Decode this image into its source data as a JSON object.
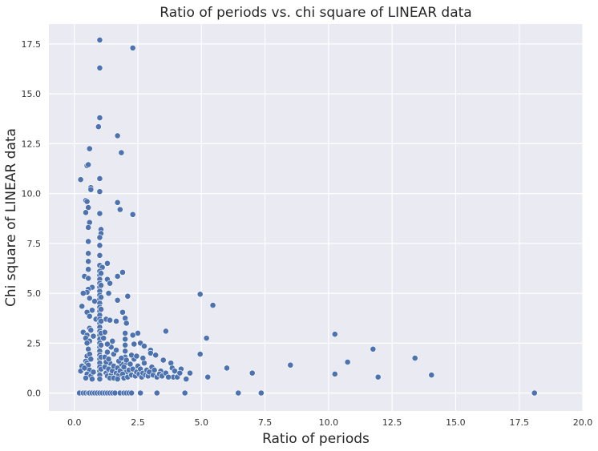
{
  "colors": {
    "background": "#eaeaf2",
    "grid": "#ffffff",
    "marker": "#4c72b0",
    "marker_edge": "#ffffff",
    "text": "#262626"
  },
  "chart_data": {
    "type": "scatter",
    "title": "Ratio of periods vs. chi square of LINEAR data",
    "xlabel": "Ratio of periods",
    "ylabel": "Chi square of LINEAR data",
    "xlim": [
      -1.0,
      20.0
    ],
    "ylim": [
      -0.9,
      18.5
    ],
    "xticks": [
      0.0,
      2.5,
      5.0,
      7.5,
      10.0,
      12.5,
      15.0,
      17.5,
      20.0
    ],
    "xtick_labels": [
      "0.0",
      "2.5",
      "5.0",
      "7.5",
      "10.0",
      "12.5",
      "15.0",
      "17.5",
      "20.0"
    ],
    "yticks": [
      0.0,
      2.5,
      5.0,
      7.5,
      10.0,
      12.5,
      15.0,
      17.5
    ],
    "ytick_labels": [
      "0.0",
      "2.5",
      "5.0",
      "7.5",
      "10.0",
      "12.5",
      "15.0",
      "17.5"
    ],
    "grid": true,
    "legend": "none",
    "points": [
      [
        0.2,
        0.0
      ],
      [
        0.35,
        0.0
      ],
      [
        0.45,
        0.0
      ],
      [
        0.55,
        0.0
      ],
      [
        0.6,
        0.0
      ],
      [
        0.7,
        0.0
      ],
      [
        0.8,
        0.0
      ],
      [
        0.9,
        0.0
      ],
      [
        1.0,
        0.0
      ],
      [
        1.1,
        0.0
      ],
      [
        1.2,
        0.0
      ],
      [
        1.3,
        0.0
      ],
      [
        1.4,
        0.0
      ],
      [
        1.5,
        0.0
      ],
      [
        1.6,
        0.0
      ],
      [
        1.8,
        0.0
      ],
      [
        1.95,
        0.0
      ],
      [
        2.05,
        0.0
      ],
      [
        2.15,
        0.0
      ],
      [
        2.25,
        0.0
      ],
      [
        2.6,
        0.0
      ],
      [
        3.25,
        0.0
      ],
      [
        4.35,
        0.0
      ],
      [
        6.45,
        0.0
      ],
      [
        7.35,
        0.0
      ],
      [
        18.1,
        0.0
      ],
      [
        1.0,
        17.7
      ],
      [
        2.3,
        17.3
      ],
      [
        1.0,
        16.3
      ],
      [
        1.0,
        13.8
      ],
      [
        0.95,
        13.35
      ],
      [
        1.7,
        12.9
      ],
      [
        0.6,
        12.25
      ],
      [
        1.85,
        12.05
      ],
      [
        0.5,
        11.4
      ],
      [
        0.55,
        11.45
      ],
      [
        0.25,
        10.7
      ],
      [
        1.0,
        10.75
      ],
      [
        0.65,
        10.3
      ],
      [
        0.65,
        10.2
      ],
      [
        1.0,
        10.1
      ],
      [
        0.45,
        9.65
      ],
      [
        0.5,
        9.6
      ],
      [
        1.7,
        9.55
      ],
      [
        0.55,
        9.3
      ],
      [
        1.8,
        9.2
      ],
      [
        0.45,
        9.05
      ],
      [
        1.0,
        9.0
      ],
      [
        2.3,
        8.95
      ],
      [
        0.6,
        8.55
      ],
      [
        0.55,
        8.3
      ],
      [
        1.05,
        8.2
      ],
      [
        1.05,
        8.0
      ],
      [
        1.0,
        7.8
      ],
      [
        0.55,
        7.6
      ],
      [
        1.0,
        7.4
      ],
      [
        0.55,
        7.0
      ],
      [
        1.0,
        6.9
      ],
      [
        0.55,
        6.6
      ],
      [
        1.3,
        6.5
      ],
      [
        1.0,
        6.4
      ],
      [
        1.1,
        6.3
      ],
      [
        0.55,
        6.2
      ],
      [
        1.9,
        6.05
      ],
      [
        1.7,
        5.85
      ],
      [
        0.4,
        5.85
      ],
      [
        0.55,
        5.75
      ],
      [
        1.3,
        5.7
      ],
      [
        1.4,
        5.5
      ],
      [
        0.7,
        5.3
      ],
      [
        0.55,
        5.2
      ],
      [
        0.5,
        5.05
      ],
      [
        0.35,
        5.0
      ],
      [
        1.35,
        5.0
      ],
      [
        4.95,
        4.95
      ],
      [
        2.1,
        4.85
      ],
      [
        0.6,
        4.75
      ],
      [
        1.7,
        4.65
      ],
      [
        0.8,
        4.6
      ],
      [
        5.45,
        4.4
      ],
      [
        0.3,
        4.35
      ],
      [
        0.7,
        4.15
      ],
      [
        0.5,
        4.05
      ],
      [
        1.9,
        4.05
      ],
      [
        0.6,
        3.85
      ],
      [
        2.0,
        3.75
      ],
      [
        1.25,
        3.7
      ],
      [
        0.85,
        3.7
      ],
      [
        1.4,
        3.65
      ],
      [
        1.65,
        3.6
      ],
      [
        2.05,
        3.5
      ],
      [
        0.6,
        3.25
      ],
      [
        0.35,
        3.05
      ],
      [
        3.6,
        3.1
      ],
      [
        2.5,
        3.0
      ],
      [
        5.2,
        2.75
      ],
      [
        2.6,
        2.5
      ],
      [
        10.25,
        2.95
      ],
      [
        0.5,
        2.9
      ],
      [
        2.3,
        2.9
      ],
      [
        0.45,
        2.75
      ],
      [
        0.6,
        2.6
      ],
      [
        2.75,
        2.35
      ],
      [
        3.0,
        2.15
      ],
      [
        11.75,
        2.2
      ],
      [
        3.0,
        2.0
      ],
      [
        4.95,
        1.95
      ],
      [
        3.2,
        1.9
      ],
      [
        0.5,
        1.85
      ],
      [
        13.4,
        1.75
      ],
      [
        3.5,
        1.65
      ],
      [
        0.45,
        1.6
      ],
      [
        10.75,
        1.55
      ],
      [
        0.5,
        1.5
      ],
      [
        3.8,
        1.5
      ],
      [
        8.5,
        1.4
      ],
      [
        0.3,
        1.35
      ],
      [
        6.0,
        1.25
      ],
      [
        4.2,
        1.2
      ],
      [
        0.25,
        1.1
      ],
      [
        3.4,
        1.1
      ],
      [
        7.0,
        1.0
      ],
      [
        10.25,
        0.95
      ],
      [
        4.55,
        1.0
      ],
      [
        14.05,
        0.9
      ],
      [
        5.25,
        0.8
      ],
      [
        11.95,
        0.8
      ],
      [
        3.9,
        0.8
      ],
      [
        4.4,
        0.7
      ],
      [
        1.0,
        6.1
      ],
      [
        1.0,
        5.9
      ],
      [
        1.0,
        5.7
      ],
      [
        1.0,
        5.5
      ],
      [
        1.0,
        5.3
      ],
      [
        1.0,
        5.1
      ],
      [
        1.0,
        4.9
      ],
      [
        1.0,
        4.7
      ],
      [
        1.0,
        4.5
      ],
      [
        1.0,
        4.3
      ],
      [
        1.0,
        4.1
      ],
      [
        1.0,
        3.9
      ],
      [
        1.0,
        3.7
      ],
      [
        1.0,
        3.5
      ],
      [
        1.0,
        3.3
      ],
      [
        1.0,
        3.1
      ],
      [
        1.0,
        2.9
      ],
      [
        1.0,
        2.7
      ],
      [
        1.0,
        2.5
      ],
      [
        1.0,
        2.3
      ],
      [
        1.0,
        2.1
      ],
      [
        1.0,
        1.9
      ],
      [
        1.0,
        1.7
      ],
      [
        1.0,
        1.5
      ],
      [
        1.0,
        1.3
      ],
      [
        1.0,
        1.1
      ],
      [
        1.0,
        0.9
      ],
      [
        1.0,
        0.7
      ],
      [
        1.05,
        6.0
      ],
      [
        1.05,
        5.4
      ],
      [
        1.05,
        4.8
      ],
      [
        1.05,
        4.2
      ],
      [
        1.05,
        3.6
      ],
      [
        1.05,
        3.0
      ],
      [
        1.05,
        2.4
      ],
      [
        1.05,
        1.8
      ],
      [
        1.05,
        1.2
      ],
      [
        2.0,
        3.0
      ],
      [
        2.0,
        2.7
      ],
      [
        2.0,
        2.4
      ],
      [
        2.0,
        2.1
      ],
      [
        2.0,
        1.8
      ],
      [
        2.0,
        1.5
      ],
      [
        2.0,
        1.2
      ],
      [
        2.0,
        0.9
      ],
      [
        2.05,
        1.05
      ],
      [
        2.05,
        1.65
      ],
      [
        0.5,
        2.5
      ],
      [
        0.55,
        2.2
      ],
      [
        0.6,
        1.95
      ],
      [
        0.65,
        1.7
      ],
      [
        0.55,
        1.4
      ],
      [
        0.6,
        1.15
      ],
      [
        0.5,
        0.95
      ],
      [
        0.65,
        0.85
      ],
      [
        0.45,
        0.75
      ],
      [
        0.7,
        0.7
      ],
      [
        0.4,
        1.25
      ],
      [
        0.75,
        2.85
      ],
      [
        0.65,
        3.15
      ],
      [
        0.75,
        1.05
      ],
      [
        1.2,
        1.3
      ],
      [
        1.25,
        1.0
      ],
      [
        1.3,
        0.85
      ],
      [
        1.35,
        1.2
      ],
      [
        1.4,
        1.5
      ],
      [
        1.45,
        0.9
      ],
      [
        1.5,
        1.1
      ],
      [
        1.55,
        1.35
      ],
      [
        1.6,
        0.8
      ],
      [
        1.65,
        1.0
      ],
      [
        1.7,
        1.25
      ],
      [
        1.75,
        0.9
      ],
      [
        1.8,
        1.1
      ],
      [
        1.85,
        1.45
      ],
      [
        1.9,
        0.95
      ],
      [
        1.95,
        1.3
      ],
      [
        1.2,
        1.8
      ],
      [
        1.3,
        2.05
      ],
      [
        1.45,
        2.3
      ],
      [
        1.55,
        1.95
      ],
      [
        1.65,
        2.15
      ],
      [
        1.75,
        1.6
      ],
      [
        1.85,
        1.75
      ],
      [
        1.5,
        2.6
      ],
      [
        1.3,
        2.45
      ],
      [
        1.15,
        2.75
      ],
      [
        1.2,
        3.05
      ],
      [
        1.4,
        0.75
      ],
      [
        1.25,
        1.55
      ],
      [
        1.55,
        0.75
      ],
      [
        1.7,
        0.7
      ],
      [
        1.95,
        0.75
      ],
      [
        1.35,
        1.7
      ],
      [
        2.1,
        0.8
      ],
      [
        2.15,
        1.15
      ],
      [
        2.2,
        1.45
      ],
      [
        2.25,
        0.9
      ],
      [
        2.3,
        1.2
      ],
      [
        2.35,
        1.7
      ],
      [
        2.4,
        0.85
      ],
      [
        2.45,
        1.05
      ],
      [
        2.5,
        1.35
      ],
      [
        2.55,
        0.95
      ],
      [
        2.6,
        1.2
      ],
      [
        2.65,
        0.8
      ],
      [
        2.7,
        1.0
      ],
      [
        2.75,
        1.5
      ],
      [
        2.8,
        0.9
      ],
      [
        2.85,
        1.15
      ],
      [
        2.9,
        0.85
      ],
      [
        2.95,
        1.05
      ],
      [
        3.05,
        1.3
      ],
      [
        3.1,
        0.9
      ],
      [
        3.15,
        1.15
      ],
      [
        3.25,
        0.8
      ],
      [
        3.35,
        0.95
      ],
      [
        3.45,
        0.85
      ],
      [
        3.6,
        1.0
      ],
      [
        3.7,
        0.8
      ],
      [
        3.85,
        1.25
      ],
      [
        3.95,
        1.1
      ],
      [
        4.05,
        0.8
      ],
      [
        4.15,
        1.0
      ],
      [
        2.25,
        1.9
      ],
      [
        2.45,
        1.85
      ],
      [
        2.7,
        1.75
      ],
      [
        2.35,
        2.45
      ]
    ]
  }
}
